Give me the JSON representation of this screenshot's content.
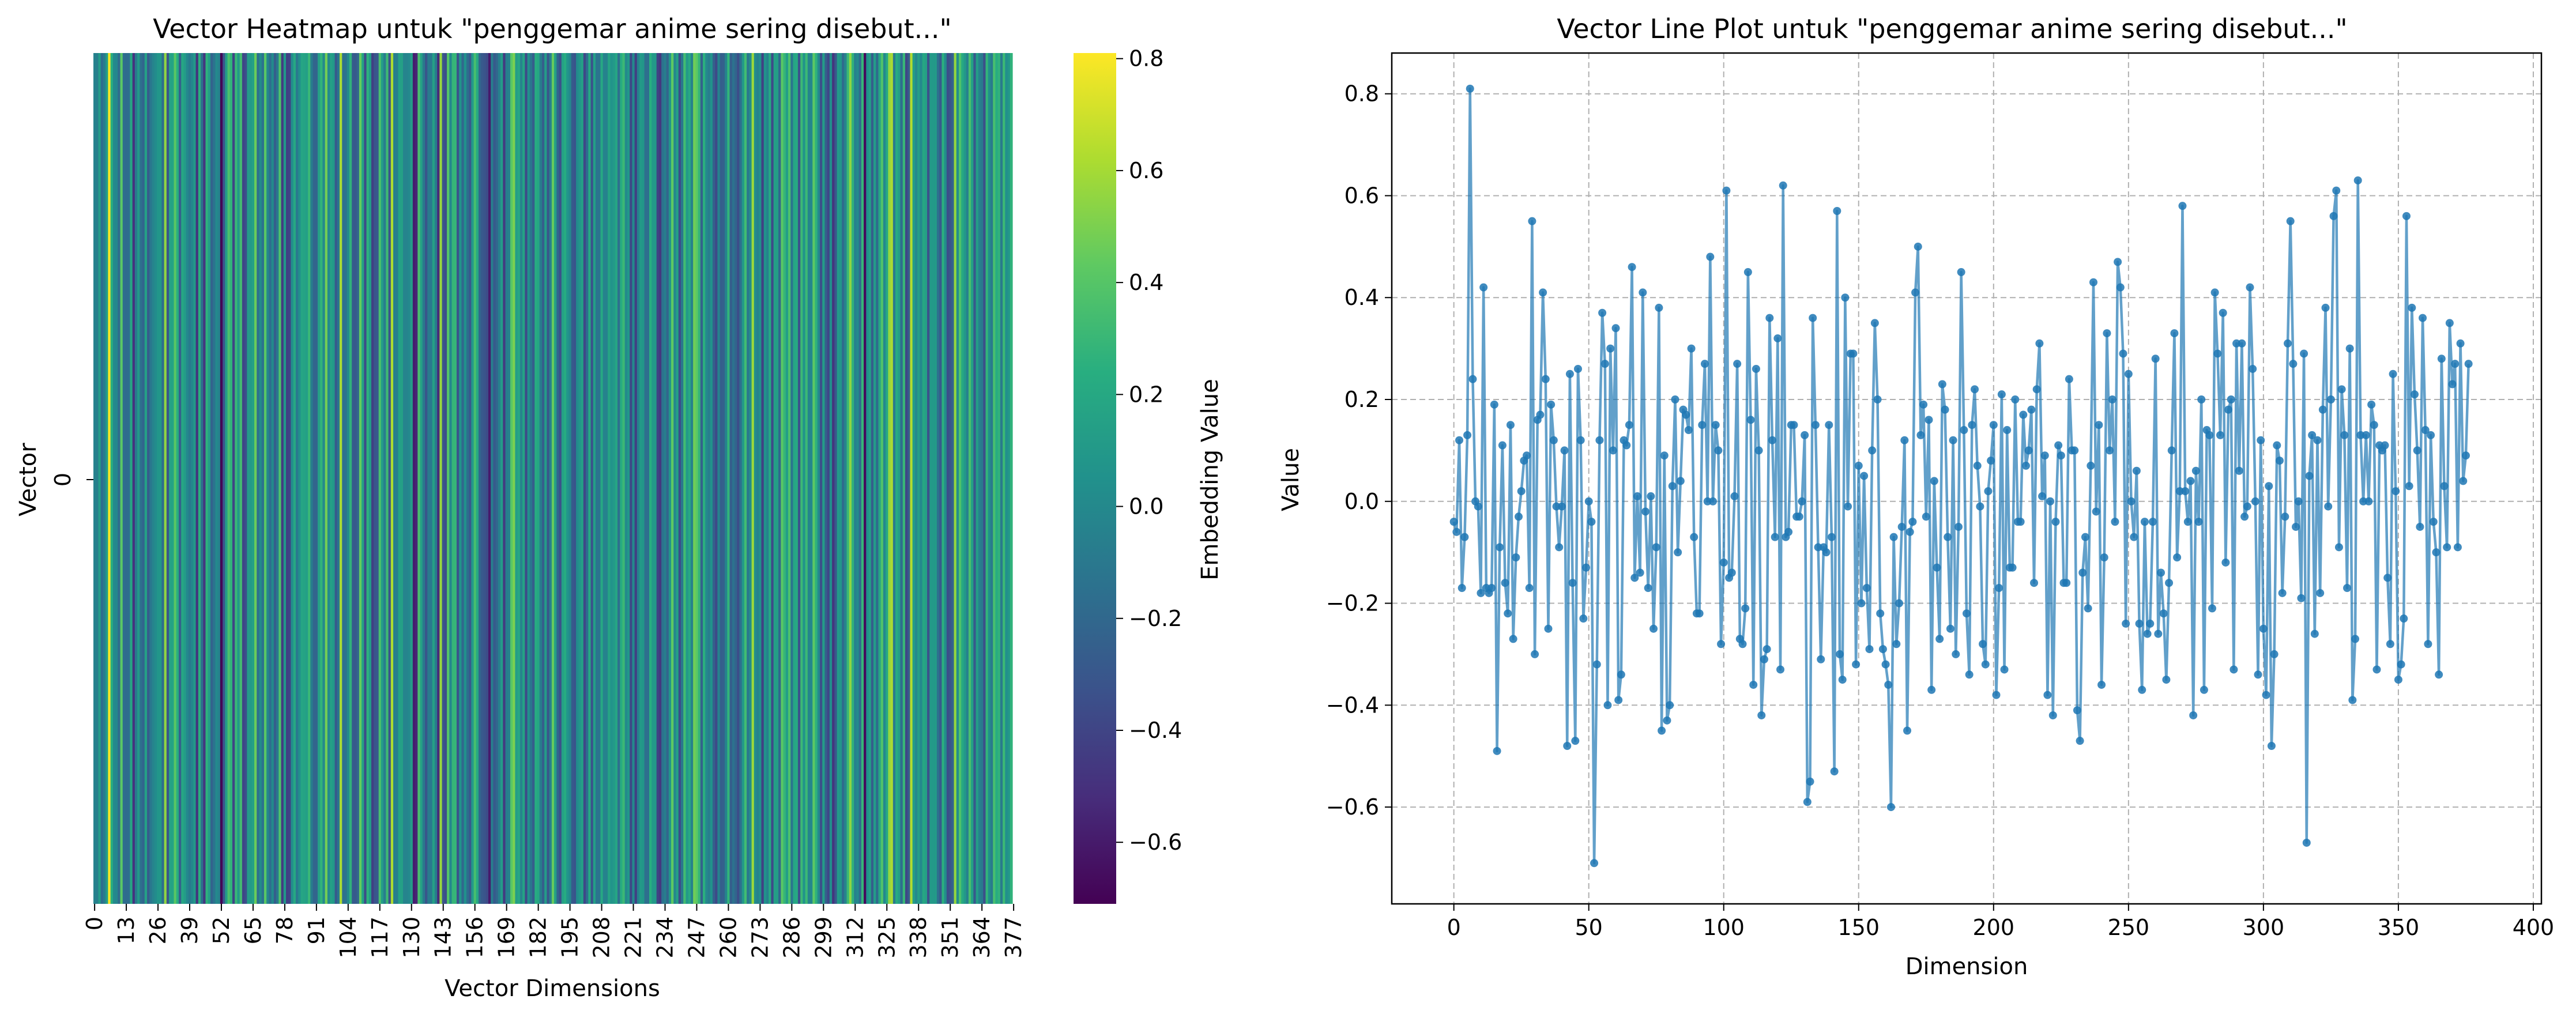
{
  "chart_data": [
    {
      "type": "heatmap",
      "title": "Vector Heatmap untuk \"penggemar anime sering disebut...\"",
      "xlabel": "Vector Dimensions",
      "ylabel": "Vector",
      "colormap": "viridis",
      "rows": [
        "0"
      ],
      "x_tick_labels": [
        "0",
        "13",
        "26",
        "39",
        "52",
        "65",
        "78",
        "91",
        "104",
        "117",
        "130",
        "143",
        "156",
        "169",
        "182",
        "195",
        "208",
        "221",
        "234",
        "247",
        "260",
        "273",
        "286",
        "299",
        "312",
        "325",
        "338",
        "351",
        "364",
        "377"
      ],
      "colorbar": {
        "label": "Embedding Value",
        "ticks": [
          0.8,
          0.6,
          0.4,
          0.2,
          0.0,
          -0.2,
          -0.4,
          -0.6
        ],
        "tick_labels": [
          "0.8",
          "0.6",
          "0.4",
          "0.2",
          "0.0",
          "−0.2",
          "−0.4",
          "−0.6"
        ],
        "vmin": -0.71,
        "vmax": 0.81
      },
      "values": [
        -0.04,
        -0.06,
        0.12,
        -0.17,
        -0.07,
        0.13,
        0.81,
        0.24,
        0.0,
        -0.01,
        -0.18,
        0.42,
        -0.17,
        -0.18,
        -0.17,
        0.19,
        -0.49,
        -0.09,
        0.11,
        -0.16,
        -0.22,
        0.15,
        -0.27,
        -0.11,
        -0.03,
        0.02,
        0.08,
        0.09,
        -0.17,
        0.55,
        -0.3,
        0.16,
        0.17,
        0.41,
        0.24,
        -0.25,
        0.19,
        0.12,
        -0.01,
        -0.09,
        -0.01,
        0.1,
        -0.48,
        0.25,
        -0.16,
        -0.47,
        0.26,
        0.12,
        -0.23,
        -0.13,
        0.0,
        -0.04,
        -0.71,
        -0.32,
        0.12,
        0.37,
        0.27,
        -0.4,
        0.3,
        0.1,
        0.34,
        -0.39,
        -0.34,
        0.12,
        0.11,
        0.15,
        0.46,
        -0.15,
        0.01,
        -0.14,
        0.41,
        -0.02,
        -0.17,
        0.01,
        -0.25,
        -0.09,
        0.38,
        -0.45,
        0.09,
        -0.43,
        -0.4,
        0.03,
        0.2,
        -0.1,
        0.04,
        0.18,
        0.17,
        0.14,
        0.3,
        -0.07,
        -0.22,
        -0.22,
        0.15,
        0.27,
        0.0,
        0.48,
        0.0,
        0.15,
        0.1,
        -0.28,
        -0.12,
        0.61,
        -0.15,
        -0.14,
        0.01,
        0.27,
        -0.27,
        -0.28,
        -0.21,
        0.45,
        0.16,
        -0.36,
        0.26,
        0.1,
        -0.42,
        -0.31,
        -0.29,
        0.36,
        0.12,
        -0.07,
        0.32,
        -0.33,
        0.62,
        -0.07,
        -0.06,
        0.15,
        0.15,
        -0.03,
        -0.03,
        0.0,
        0.13,
        -0.59,
        -0.55,
        0.36,
        0.15,
        -0.09,
        -0.31,
        -0.09,
        -0.1,
        0.15,
        -0.07,
        -0.53,
        0.57,
        -0.3,
        -0.35,
        0.4,
        -0.01,
        0.29,
        0.29,
        -0.32,
        0.07,
        -0.2,
        0.05,
        -0.17,
        -0.29,
        0.1,
        0.35,
        0.2,
        -0.22,
        -0.29,
        -0.32,
        -0.36,
        -0.6,
        -0.07,
        -0.28,
        -0.2,
        -0.05,
        0.12,
        -0.45,
        -0.06,
        -0.04,
        0.41,
        0.5,
        0.13,
        0.19,
        -0.03,
        0.16,
        -0.37,
        0.04,
        -0.13,
        -0.27,
        0.23,
        0.18,
        -0.07,
        -0.25,
        0.12,
        -0.3,
        -0.05,
        0.45,
        0.14,
        -0.22,
        -0.34,
        0.15,
        0.22,
        0.07,
        -0.01,
        -0.28,
        -0.32,
        0.02,
        0.08,
        0.15,
        -0.38,
        -0.17,
        0.21,
        -0.33,
        0.14,
        -0.13,
        -0.13,
        0.2,
        -0.04,
        -0.04,
        0.17,
        0.07,
        0.1,
        0.18,
        -0.16,
        0.22,
        0.31,
        0.01,
        0.09,
        -0.38,
        0.0,
        -0.42,
        -0.04,
        0.11,
        0.09,
        -0.16,
        -0.16,
        0.24,
        0.1,
        0.1,
        -0.41,
        -0.47,
        -0.14,
        -0.07,
        -0.21,
        0.07,
        0.43,
        -0.02,
        0.15,
        -0.36,
        -0.11,
        0.33,
        0.1,
        0.2,
        -0.04,
        0.47,
        0.42,
        0.29,
        -0.24,
        0.25,
        0.0,
        -0.07,
        0.06,
        -0.24,
        -0.37,
        -0.04,
        -0.26,
        -0.24,
        -0.04,
        0.28,
        -0.26,
        -0.14,
        -0.22,
        -0.35,
        -0.16,
        0.1,
        0.33,
        -0.11,
        0.02,
        0.58,
        0.02,
        -0.04,
        0.04,
        -0.42,
        0.06,
        -0.04,
        0.2,
        -0.37,
        0.14,
        0.13,
        -0.21,
        0.41,
        0.29,
        0.13,
        0.37,
        -0.12,
        0.18,
        0.2,
        -0.33,
        0.31,
        0.06,
        0.31,
        -0.03,
        -0.01,
        0.42,
        0.26,
        0.0,
        -0.34,
        0.12,
        -0.25,
        -0.38,
        0.03,
        -0.48,
        -0.3,
        0.11,
        0.08,
        -0.18,
        -0.03,
        0.31,
        0.55,
        0.27,
        -0.05,
        0.0,
        -0.19,
        0.29,
        -0.67,
        0.05,
        0.13,
        -0.26,
        0.12,
        -0.18,
        0.18,
        0.38,
        -0.01,
        0.2,
        0.56,
        0.61,
        -0.09,
        0.22,
        0.13,
        -0.17,
        0.3,
        -0.39,
        -0.27,
        0.63,
        0.13,
        0.0,
        0.13,
        0.0,
        0.19,
        0.15,
        -0.33,
        0.11,
        0.1,
        0.11,
        -0.15,
        -0.28,
        0.25,
        0.02,
        -0.35,
        -0.32,
        -0.23,
        0.56,
        0.03,
        0.38,
        0.21,
        0.1,
        -0.05,
        0.36,
        0.14,
        -0.28,
        0.13,
        -0.04,
        -0.1,
        -0.34,
        0.28,
        0.03,
        -0.09,
        0.35,
        0.23,
        0.27,
        -0.09,
        0.31,
        0.04,
        0.09,
        0.27
      ]
    },
    {
      "type": "line",
      "title": "Vector Line Plot untuk \"penggemar anime sering disebut...\"",
      "xlabel": "Dimension",
      "ylabel": "Value",
      "xlim": [
        -23,
        403
      ],
      "ylim": [
        -0.79,
        0.88
      ],
      "x_ticks": [
        0,
        50,
        100,
        150,
        200,
        250,
        300,
        350,
        400
      ],
      "x_tick_labels": [
        "0",
        "50",
        "100",
        "150",
        "200",
        "250",
        "300",
        "350",
        "400"
      ],
      "y_ticks": [
        0.8,
        0.6,
        0.4,
        0.2,
        0.0,
        -0.2,
        -0.4,
        -0.6
      ],
      "y_tick_labels": [
        "0.8",
        "0.6",
        "0.4",
        "0.2",
        "0.0",
        "−0.2",
        "−0.4",
        "−0.6"
      ],
      "grid": true,
      "line_color": "#1f77b4",
      "line_alpha": 0.7,
      "series_source": "same 384 values as the heatmap, x = index 0..383"
    }
  ]
}
